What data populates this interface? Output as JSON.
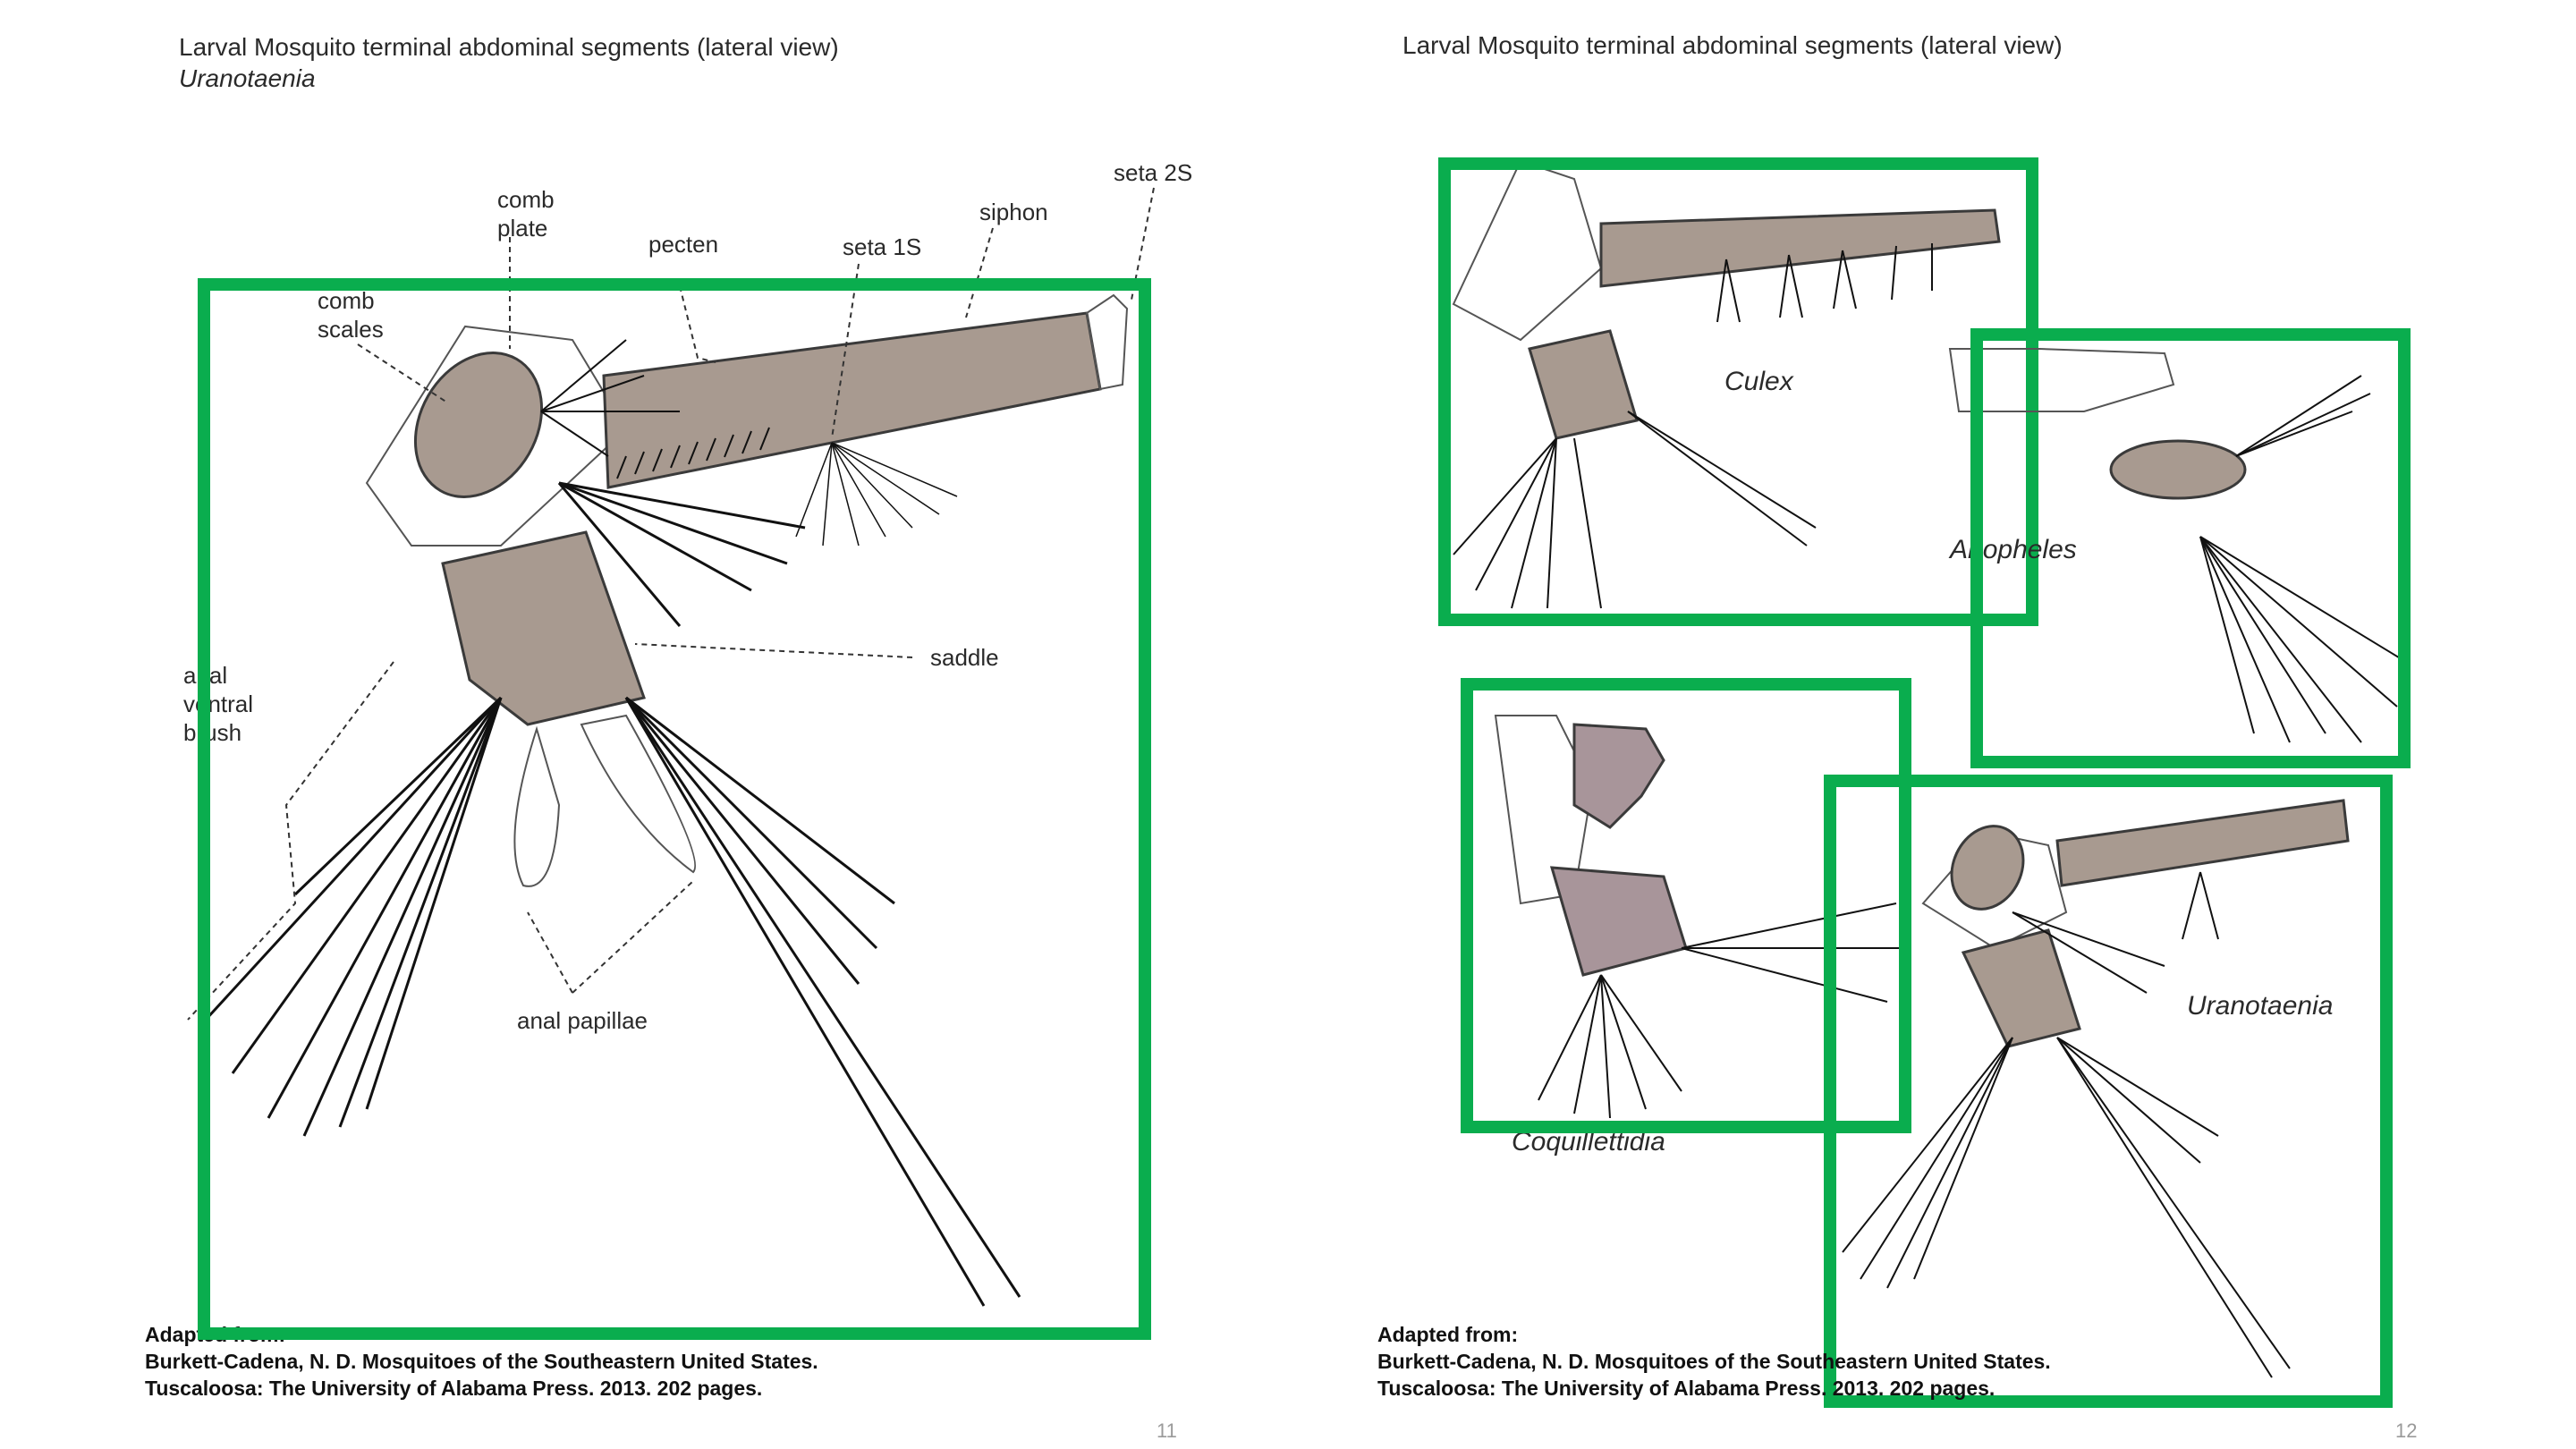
{
  "left_page": {
    "title": "Larval Mosquito terminal abdominal segments (lateral view)",
    "subtitle": "Uranotaenia",
    "labels": {
      "comb_plate": [
        "comb",
        "plate"
      ],
      "comb_scales": [
        "comb",
        "scales"
      ],
      "pecten": "pecten",
      "seta_1s": "seta 1S",
      "siphon": "siphon",
      "seta_2s": "seta 2S",
      "saddle": "saddle",
      "anal_ventral_brush": [
        "anal",
        "ventral",
        "brush"
      ],
      "anal_papillae": "anal papillae"
    },
    "reference": [
      "Adapted from:",
      "Burkett-Cadena, N. D. Mosquitoes of the Southeastern United States.",
      "Tuscaloosa: The University of Alabama Press. 2013. 202 pages."
    ],
    "page_number": "11"
  },
  "right_page": {
    "title": "Larval Mosquito terminal abdominal segments (lateral view)",
    "genera": {
      "culex": "Culex",
      "anopheles": "Anopheles",
      "coquillettidia": "Coquillettidia",
      "uranotaenia": "Uranotaenia"
    },
    "reference": [
      "Adapted from:",
      "Burkett-Cadena, N. D. Mosquitoes of the Southeastern United States.",
      "Tuscaloosa: The University of Alabama Press. 2013. 202 pages."
    ],
    "page_number": "12"
  },
  "colors": {
    "highlight_box": "#0aad4e",
    "segment_fill": "#a89a90",
    "coquillettidia_fill": "#a8959a"
  }
}
